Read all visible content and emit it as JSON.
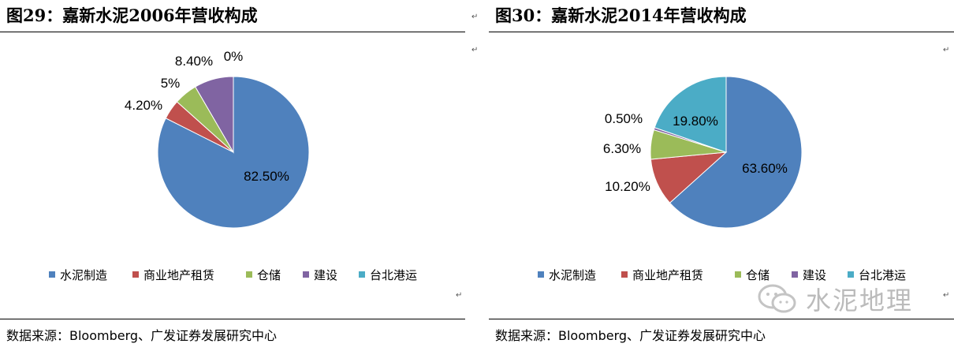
{
  "legend_labels": [
    "水泥制造",
    "商业地产租赁",
    "仓储",
    "建设",
    "台北港运"
  ],
  "series_colors": [
    "#4f81bd",
    "#c0504d",
    "#9bbb59",
    "#8064a2",
    "#4bacc6"
  ],
  "watermark_text": "水泥地理",
  "chart_data": [
    {
      "type": "pie",
      "title": "图29：嘉新水泥2006年营收构成",
      "source": "数据来源：Bloomberg、广发证券发展研究中心",
      "categories": [
        "水泥制造",
        "商业地产租赁",
        "仓储",
        "建设",
        "台北港运"
      ],
      "values": [
        82.5,
        4.2,
        5,
        8.4,
        0
      ],
      "data_labels": [
        "82.50%",
        "4.20%",
        "5%",
        "8.40%",
        "0%"
      ],
      "legend_position": "bottom"
    },
    {
      "type": "pie",
      "title": "图30：嘉新水泥2014年营收构成",
      "source": "数据来源：Bloomberg、广发证券发展研究中心",
      "categories": [
        "水泥制造",
        "商业地产租赁",
        "仓储",
        "建设",
        "台北港运"
      ],
      "values": [
        63.6,
        10.2,
        6.3,
        0.5,
        19.8
      ],
      "data_labels": [
        "63.60%",
        "10.20%",
        "6.30%",
        "0.50%",
        "19.80%"
      ],
      "legend_position": "bottom"
    }
  ]
}
